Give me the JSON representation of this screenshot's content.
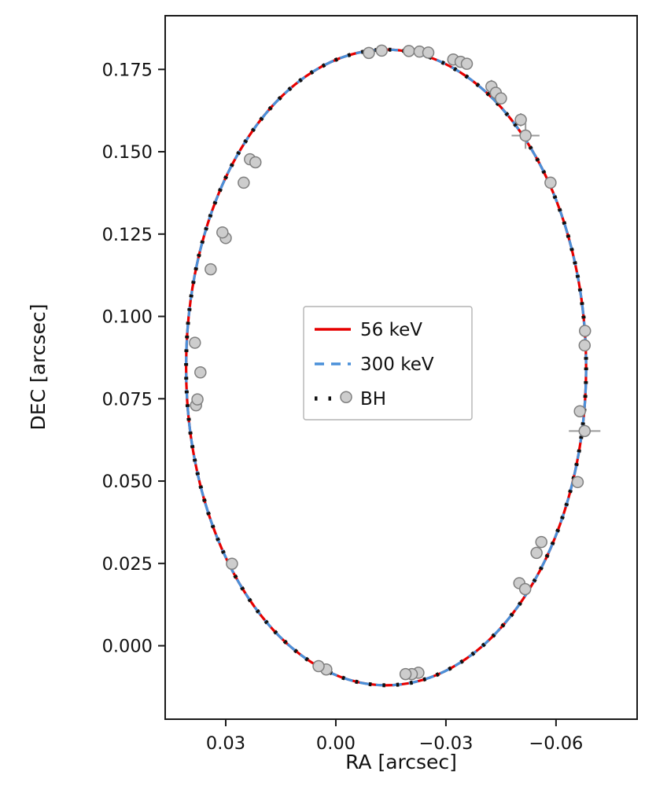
{
  "figure": {
    "background": "#ffffff"
  },
  "chart_data": {
    "type": "line",
    "title": "",
    "xlabel": "RA [arcsec]",
    "ylabel": "DEC [arcsec]",
    "x_axis_inverted": true,
    "xlim": [
      0.0465,
      -0.0821
    ],
    "ylim": [
      -0.0223,
      0.1913
    ],
    "xticks": {
      "values": [
        0.03,
        0.0,
        -0.03,
        -0.06
      ],
      "labels": [
        "0.03",
        "0.00",
        "−0.03",
        "−0.06"
      ]
    },
    "yticks": {
      "values": [
        0.0,
        0.025,
        0.05,
        0.075,
        0.1,
        0.125,
        0.15,
        0.175
      ],
      "labels": [
        "0.000",
        "0.025",
        "0.050",
        "0.075",
        "0.100",
        "0.125",
        "0.150",
        "0.175"
      ]
    },
    "grid": false,
    "legend_position": "center-left-inside",
    "orbit_ellipse": {
      "cx": -0.0137,
      "cy": 0.0845,
      "rx": 0.0545,
      "ry": 0.0965
    },
    "series": [
      {
        "name": "56 keV",
        "type": "line",
        "style": "solid",
        "color": "#e60000",
        "width": 3.2,
        "dash": []
      },
      {
        "name": "300 keV",
        "type": "line",
        "style": "dashed",
        "color": "#4a90d9",
        "width": 3.2,
        "dash": [
          12,
          9
        ]
      },
      {
        "name": "BH",
        "type": "line",
        "style": "dotted",
        "color": "#111111",
        "width": 5,
        "dash": [
          3.5,
          14
        ]
      }
    ],
    "points": {
      "name": "astrometric-measurements",
      "marker": "circle",
      "fill": "#cdcdcd",
      "edge": "#7f7f7f",
      "errorbar_color": "#9a9a9a",
      "radius": 7,
      "data": [
        [
          -0.009,
          0.18,
          0,
          0
        ],
        [
          -0.0125,
          0.1807,
          0,
          0
        ],
        [
          -0.0199,
          0.1806,
          0,
          0
        ],
        [
          -0.0228,
          0.1804,
          0,
          0
        ],
        [
          -0.0252,
          0.1801,
          0,
          0
        ],
        [
          -0.032,
          0.178,
          0,
          0
        ],
        [
          -0.034,
          0.1773,
          0,
          0
        ],
        [
          -0.0357,
          0.1767,
          0,
          0
        ],
        [
          -0.0424,
          0.1698,
          0,
          0.002
        ],
        [
          -0.0436,
          0.1679,
          0,
          0
        ],
        [
          -0.045,
          0.1662,
          0,
          0
        ],
        [
          -0.0504,
          0.1597,
          0,
          0.002
        ],
        [
          -0.0517,
          0.1549,
          0.0038,
          0.004
        ],
        [
          -0.0585,
          0.1406,
          0,
          0
        ],
        [
          -0.0679,
          0.0956,
          0,
          0
        ],
        [
          -0.0678,
          0.0912,
          0,
          0
        ],
        [
          -0.0665,
          0.0712,
          0,
          0
        ],
        [
          -0.0678,
          0.0652,
          0.0043,
          0.0018
        ],
        [
          -0.0659,
          0.0497,
          0,
          0
        ],
        [
          -0.056,
          0.0315,
          0,
          0
        ],
        [
          -0.0547,
          0.0282,
          0,
          0
        ],
        [
          -0.05,
          0.019,
          0,
          0
        ],
        [
          -0.0516,
          0.0172,
          0,
          0
        ],
        [
          -0.0225,
          -0.0082,
          0,
          0
        ],
        [
          -0.0207,
          -0.0086,
          0,
          0
        ],
        [
          -0.019,
          -0.0086,
          0,
          0
        ],
        [
          0.0026,
          -0.0072,
          0,
          0
        ],
        [
          0.0047,
          -0.0062,
          0,
          0
        ],
        [
          0.0283,
          0.0249,
          0,
          0
        ],
        [
          0.0381,
          0.073,
          0,
          0
        ],
        [
          0.0377,
          0.0748,
          0,
          0
        ],
        [
          0.0369,
          0.083,
          0,
          0
        ],
        [
          0.0384,
          0.092,
          0,
          0
        ],
        [
          0.0341,
          0.1143,
          0,
          0
        ],
        [
          0.03,
          0.1238,
          0,
          0
        ],
        [
          0.0309,
          0.1255,
          0,
          0
        ],
        [
          0.0251,
          0.1406,
          0,
          0
        ],
        [
          0.0234,
          0.1477,
          0,
          0
        ],
        [
          0.0219,
          0.1468,
          0,
          0
        ],
        [
          -0.0028,
          0.0755,
          0,
          0
        ]
      ]
    }
  }
}
